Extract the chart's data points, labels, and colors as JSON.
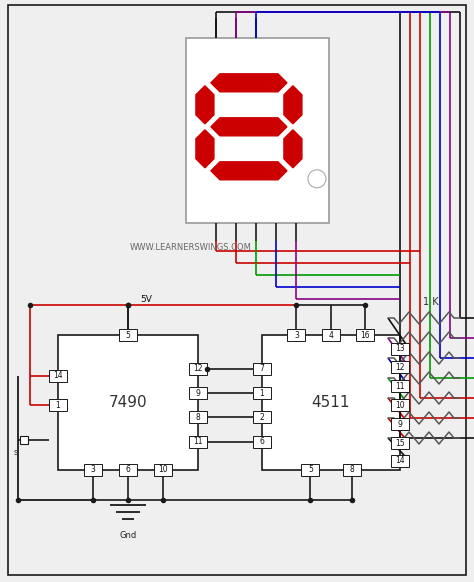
{
  "bg_color": "#efefef",
  "watermark": "WWW.LEARNERSWINGS.COM",
  "seg_color": "#cc0000",
  "line_color": "#1a1a1a",
  "gnd_label": "Gnd",
  "vcc_label": "5V",
  "resistor_label": "1 K",
  "ic1_label": "7490",
  "ic2_label": "4511",
  "wire_colors_right": [
    "#cc0000",
    "#880088",
    "#0000cc",
    "#009900",
    "#cc0000"
  ],
  "wire_colors_top": [
    "#cc0000",
    "#0000cc",
    "#880088",
    "#cc0000"
  ],
  "pin_fc": "white",
  "pin_ec": "#333333"
}
